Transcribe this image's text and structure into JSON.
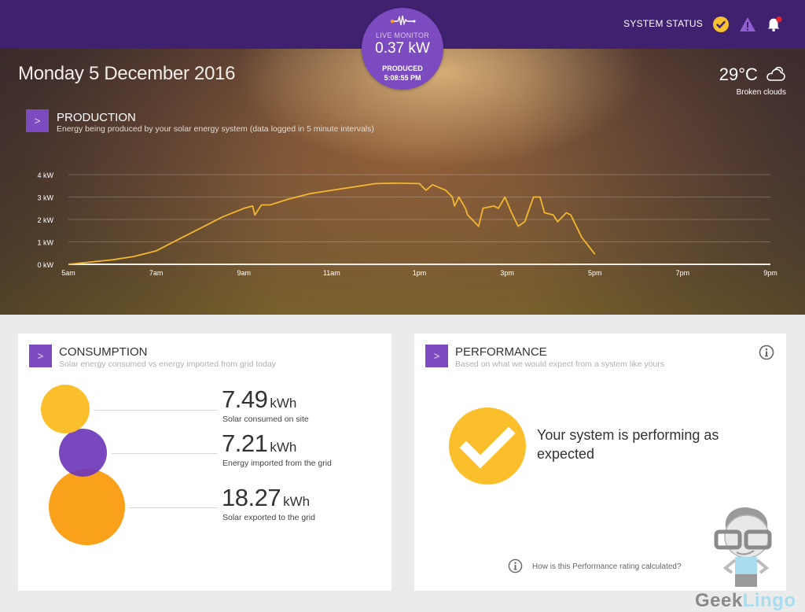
{
  "header": {
    "system_status_label": "SYSTEM STATUS",
    "status_icons": [
      "check-circle-icon",
      "warning-icon",
      "bell-icon"
    ],
    "live_monitor": {
      "label": "LIVE MONITOR",
      "value": "0.37 kW",
      "produced_label": "PRODUCED",
      "time": "5:08:55 PM"
    }
  },
  "hero": {
    "date": "Monday 5 December 2016",
    "weather": {
      "temperature": "29°C",
      "description": "Broken clouds",
      "icon": "cloud-icon"
    }
  },
  "production": {
    "button_label": ">",
    "title": "PRODUCTION",
    "subtitle": "Energy being produced by your solar energy system (data logged in 5 minute intervals)"
  },
  "chart_data": {
    "type": "line",
    "title": "PRODUCTION",
    "xlabel": "",
    "ylabel": "",
    "y_ticks": [
      "0 kW",
      "1 kW",
      "2 kW",
      "3 kW",
      "4 kW"
    ],
    "x_ticks": [
      "5am",
      "7am",
      "9am",
      "11am",
      "1pm",
      "3pm",
      "5pm",
      "7pm",
      "9pm"
    ],
    "ylim": [
      0,
      4
    ],
    "xlim": [
      5,
      21
    ],
    "grid": true,
    "series": [
      {
        "name": "Production (kW)",
        "color": "#f2b631",
        "x": [
          5.0,
          5.5,
          6.0,
          6.5,
          7.0,
          7.5,
          8.0,
          8.5,
          9.0,
          9.2,
          9.25,
          9.4,
          9.6,
          10.0,
          10.5,
          11.0,
          11.5,
          12.0,
          12.5,
          13.0,
          13.15,
          13.3,
          13.6,
          13.75,
          13.8,
          13.9,
          14.05,
          14.1,
          14.35,
          14.45,
          14.7,
          14.8,
          14.95,
          15.1,
          15.25,
          15.4,
          15.6,
          15.75,
          15.85,
          16.05,
          16.15,
          16.35,
          16.45,
          16.7,
          16.9,
          17.0
        ],
        "y": [
          0.0,
          0.1,
          0.2,
          0.35,
          0.6,
          1.1,
          1.6,
          2.1,
          2.5,
          2.6,
          2.2,
          2.65,
          2.65,
          2.9,
          3.15,
          3.3,
          3.45,
          3.6,
          3.62,
          3.6,
          3.3,
          3.55,
          3.3,
          3.0,
          2.6,
          3.0,
          2.5,
          2.2,
          1.7,
          2.5,
          2.6,
          2.5,
          3.0,
          2.3,
          1.7,
          1.9,
          3.0,
          3.0,
          2.3,
          2.2,
          1.9,
          2.3,
          2.2,
          1.2,
          0.7,
          0.45
        ]
      }
    ]
  },
  "consumption": {
    "button_label": ">",
    "title": "CONSUMPTION",
    "subtitle": "Solar energy consumed vs energy imported from grid today",
    "items": [
      {
        "value": "7.49",
        "unit": "kWh",
        "label": "Solar consumed on site",
        "color": "#fbbf2c"
      },
      {
        "value": "7.21",
        "unit": "kWh",
        "label": "Energy imported from the grid",
        "color": "#7b4bbf"
      },
      {
        "value": "18.27",
        "unit": "kWh",
        "label": "Solar exported to the grid",
        "color": "#f9a11b"
      }
    ]
  },
  "performance": {
    "button_label": ">",
    "title": "PERFORMANCE",
    "subtitle": "Based on what we would expect from a system like yours",
    "message": "Your system is performing as expected",
    "link": "How is this Performance rating calculated?",
    "accent": "#fbbf2c"
  },
  "watermark": {
    "part1": "Geek",
    "part2": "Lingo"
  }
}
